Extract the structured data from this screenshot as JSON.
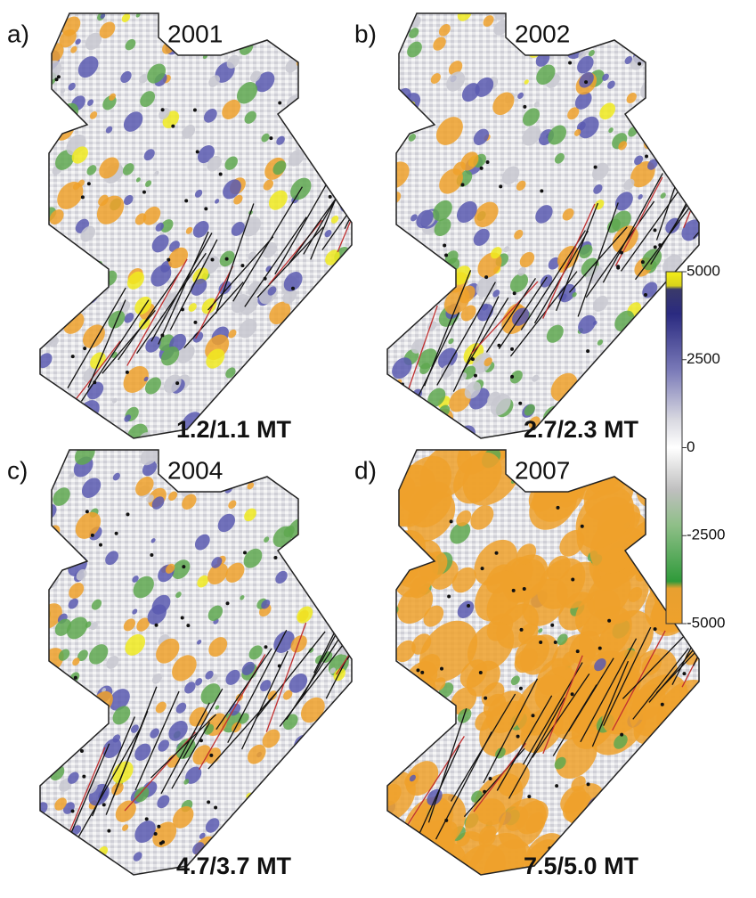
{
  "panels": [
    {
      "label": "a)",
      "year": "2001",
      "caption": "1.2/1.1 MT"
    },
    {
      "label": "b)",
      "year": "2002",
      "caption": "2.7/2.3 MT"
    },
    {
      "label": "c)",
      "year": "2004",
      "caption": "4.7/3.7 MT"
    },
    {
      "label": "d)",
      "year": "2007",
      "caption": "7.5/5.0 MT"
    }
  ],
  "colorbar": {
    "lim": [
      -5000,
      5000
    ],
    "ticks": [
      5000,
      2500,
      0,
      -2500,
      -5000
    ]
  }
}
